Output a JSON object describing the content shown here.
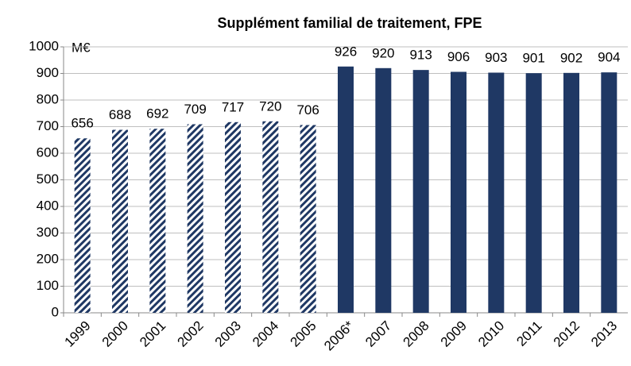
{
  "chart_data": {
    "type": "bar",
    "title": "Supplément familial de traitement, FPE",
    "unit_label": "M€",
    "categories": [
      "1999",
      "2000",
      "2001",
      "2002",
      "2003",
      "2004",
      "2005",
      "2006*",
      "2007",
      "2008",
      "2009",
      "2010",
      "2011",
      "2012",
      "2013"
    ],
    "values": [
      656,
      688,
      692,
      709,
      717,
      720,
      706,
      926,
      920,
      913,
      906,
      903,
      901,
      902,
      904
    ],
    "bar_styles": [
      "hatched",
      "hatched",
      "hatched",
      "hatched",
      "hatched",
      "hatched",
      "hatched",
      "solid",
      "solid",
      "solid",
      "solid",
      "solid",
      "solid",
      "solid",
      "solid"
    ],
    "color": "#1f3864",
    "ylim": [
      0,
      1000
    ],
    "yticks": [
      0,
      100,
      200,
      300,
      400,
      500,
      600,
      700,
      800,
      900,
      1000
    ],
    "grid": true
  }
}
